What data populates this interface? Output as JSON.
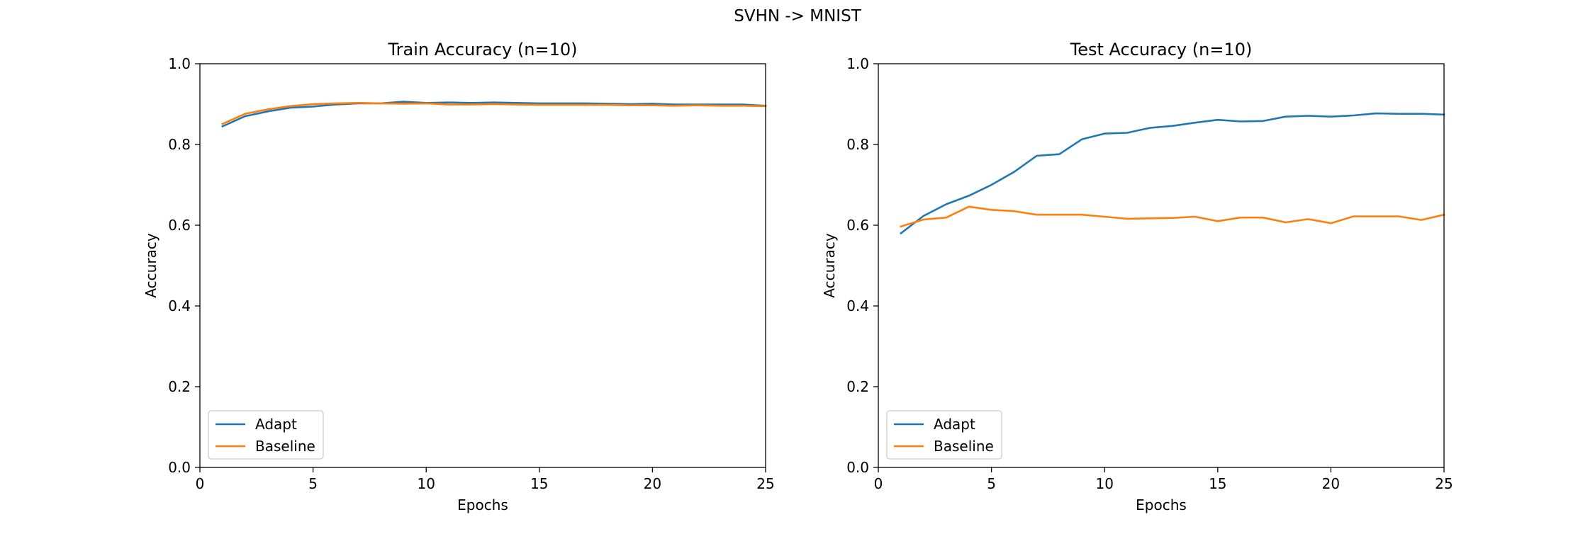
{
  "suptitle": "SVHN -> MNIST",
  "chart_data": [
    {
      "type": "line",
      "title": "Train Accuracy (n=10)",
      "xlabel": "Epochs",
      "ylabel": "Accuracy",
      "xlim": [
        0,
        25
      ],
      "ylim": [
        0.0,
        1.0
      ],
      "xticks": [
        "0",
        "5",
        "10",
        "15",
        "20",
        "25"
      ],
      "yticks": [
        "0.0",
        "0.2",
        "0.4",
        "0.6",
        "0.8",
        "1.0"
      ],
      "grid": false,
      "legend_position": "lower-left",
      "x": [
        1,
        2,
        3,
        4,
        5,
        6,
        7,
        8,
        9,
        10,
        11,
        12,
        13,
        14,
        15,
        16,
        17,
        18,
        19,
        20,
        21,
        22,
        23,
        24,
        25
      ],
      "series": [
        {
          "name": "Adapt",
          "color": "#1f77b4",
          "values": [
            0.845,
            0.87,
            0.882,
            0.891,
            0.894,
            0.899,
            0.902,
            0.902,
            0.906,
            0.903,
            0.904,
            0.903,
            0.904,
            0.903,
            0.902,
            0.902,
            0.902,
            0.901,
            0.9,
            0.901,
            0.899,
            0.899,
            0.899,
            0.899,
            0.896
          ]
        },
        {
          "name": "Baseline",
          "color": "#ff7f0e",
          "values": [
            0.851,
            0.876,
            0.887,
            0.895,
            0.9,
            0.902,
            0.903,
            0.902,
            0.901,
            0.902,
            0.899,
            0.899,
            0.9,
            0.899,
            0.898,
            0.898,
            0.898,
            0.898,
            0.897,
            0.897,
            0.896,
            0.897,
            0.896,
            0.896,
            0.895
          ]
        }
      ]
    },
    {
      "type": "line",
      "title": "Test Accuracy (n=10)",
      "xlabel": "Epochs",
      "ylabel": "Accuracy",
      "xlim": [
        0,
        25
      ],
      "ylim": [
        0.0,
        1.0
      ],
      "xticks": [
        "0",
        "5",
        "10",
        "15",
        "20",
        "25"
      ],
      "yticks": [
        "0.0",
        "0.2",
        "0.4",
        "0.6",
        "0.8",
        "1.0"
      ],
      "grid": false,
      "legend_position": "lower-left",
      "x": [
        1,
        2,
        3,
        4,
        5,
        6,
        7,
        8,
        9,
        10,
        11,
        12,
        13,
        14,
        15,
        16,
        17,
        18,
        19,
        20,
        21,
        22,
        23,
        24,
        25
      ],
      "series": [
        {
          "name": "Adapt",
          "color": "#1f77b4",
          "values": [
            0.58,
            0.623,
            0.652,
            0.673,
            0.7,
            0.732,
            0.772,
            0.776,
            0.813,
            0.827,
            0.829,
            0.841,
            0.846,
            0.854,
            0.861,
            0.857,
            0.858,
            0.869,
            0.871,
            0.869,
            0.872,
            0.877,
            0.876,
            0.876,
            0.874
          ]
        },
        {
          "name": "Baseline",
          "color": "#ff7f0e",
          "values": [
            0.597,
            0.614,
            0.619,
            0.646,
            0.638,
            0.635,
            0.626,
            0.626,
            0.626,
            0.621,
            0.616,
            0.617,
            0.618,
            0.621,
            0.61,
            0.619,
            0.619,
            0.607,
            0.615,
            0.605,
            0.622,
            0.622,
            0.622,
            0.613,
            0.626
          ]
        }
      ]
    }
  ]
}
